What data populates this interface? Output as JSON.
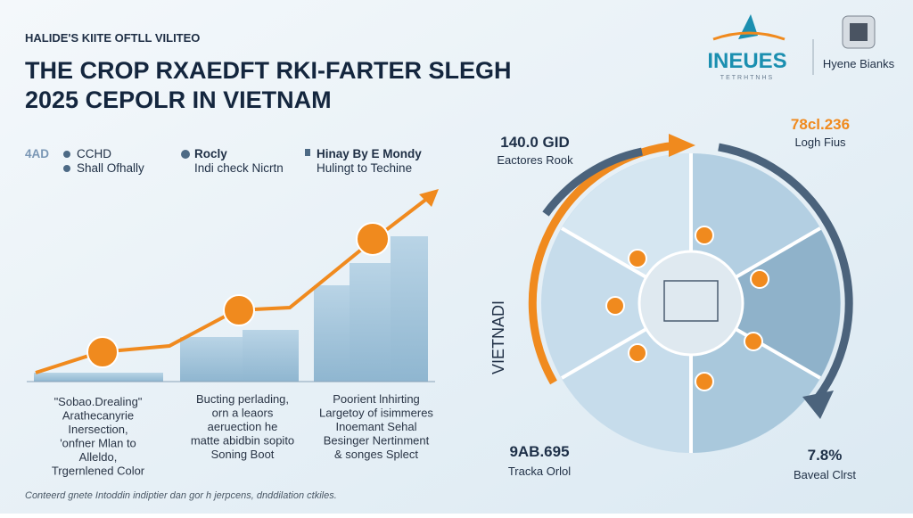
{
  "header": {
    "kicker": "HALIDE'S KIITE OFTLL VILITEO",
    "title": [
      "THE CROP RXAEDFT RKI-FARTER SLEGH",
      "2025 CEPOLR IN VIETNAM"
    ]
  },
  "logos": [
    {
      "name": "INEUES",
      "sub": "TETRHTNHS"
    },
    {
      "name": "Hyene Bianks"
    }
  ],
  "legend": [
    {
      "tag": "4AD",
      "title": "CCHD",
      "text": "Shall Ofhally"
    },
    {
      "title": "Rocly",
      "text": "Indi check Nicrtn"
    },
    {
      "title": "Hinay By E Mondy",
      "text": "Hulingt to Techine"
    }
  ],
  "captions": [
    [
      "\"Sobao.Drealing\"",
      "Arathecanyrie",
      "Inersection,",
      "'onfner Mlan to",
      "Alleldo,",
      "Trgernlened Color"
    ],
    [
      "Bucting perlading,",
      "orn a leaors",
      "aeruection he",
      "matte abidbin sopito",
      "Soning Boot"
    ],
    [
      "Poorient lnhirting",
      "Largetoy of isimmeres",
      "Inoemant Sehal",
      "Besinger Nertinment",
      "& songes Splect"
    ]
  ],
  "circle": {
    "side_label": "VIETNADI",
    "stats": [
      {
        "value": "140.0 GID",
        "label": "Eactores Rook"
      },
      {
        "value": "78cl.236",
        "label": "Logh Fius"
      },
      {
        "value": "9AB.695",
        "label": "Tracka Orlol"
      },
      {
        "value": "7.8%",
        "label": "Baveal Clrst"
      }
    ]
  },
  "footer": "Conteerd gnete Intoddin indiptier dan gor h jerpcens, dnddilation ctkiles."
}
